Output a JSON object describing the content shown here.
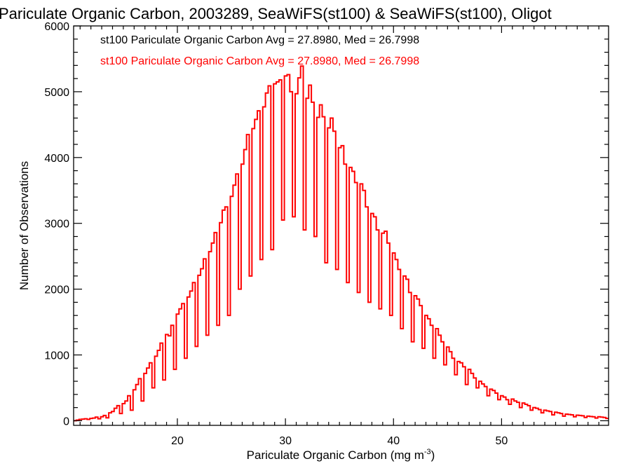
{
  "chart_data": {
    "type": "bar",
    "title": "Pariculate Organic Carbon, 2003289, SeaWiFS(st100) & SeaWiFS(st100), Oligot",
    "xlabel": "Pariculate Organic Carbon (mg m",
    "xlabel_superscript": "-3",
    "xlabel_suffix": ")",
    "ylabel": "Number of Observations",
    "xlim": [
      10.4,
      59.9
    ],
    "ylim": [
      -70,
      6000
    ],
    "xticks": [
      20,
      30,
      40,
      50
    ],
    "yticks": [
      0,
      1000,
      2000,
      3000,
      4000,
      5000,
      6000
    ],
    "grid": false,
    "legend_position": "top-left",
    "legend": [
      {
        "text": "st100 Pariculate Organic Carbon Avg = 27.8980, Med = 26.7998",
        "color": "#000000"
      },
      {
        "text": "st100 Pariculate Organic Carbon Avg = 27.8980, Med = 26.7998",
        "color": "#ff0000"
      }
    ],
    "series": [
      {
        "color": "#ff0000",
        "bin_width": 0.25,
        "x_start": 10.4,
        "values": [
          0,
          10,
          20,
          25,
          30,
          20,
          35,
          40,
          55,
          30,
          60,
          80,
          45,
          120,
          140,
          190,
          230,
          110,
          260,
          300,
          380,
          160,
          470,
          550,
          640,
          300,
          720,
          800,
          880,
          500,
          980,
          1070,
          1180,
          620,
          1310,
          1290,
          1450,
          780,
          1620,
          1700,
          1780,
          950,
          1880,
          1970,
          2100,
          1130,
          2210,
          2310,
          2460,
          1300,
          2570,
          2700,
          2860,
          1450,
          3010,
          3200,
          3250,
          1600,
          3410,
          3580,
          3750,
          2000,
          3900,
          4120,
          4350,
          2200,
          4440,
          4580,
          4710,
          2450,
          4770,
          4980,
          5090,
          2600,
          5120,
          5150,
          5180,
          3050,
          5240,
          5260,
          5000,
          3100,
          4970,
          5210,
          5390,
          2900,
          4900,
          5100,
          4840,
          2800,
          4610,
          4800,
          4620,
          2400,
          4450,
          4600,
          4400,
          2300,
          4150,
          4180,
          3900,
          2100,
          3850,
          3790,
          3620,
          1950,
          3600,
          3500,
          3250,
          1800,
          3150,
          3100,
          2900,
          1700,
          2850,
          2880,
          2700,
          1600,
          2550,
          2450,
          2300,
          1400,
          2200,
          2150,
          1950,
          1200,
          1900,
          1850,
          1750,
          1100,
          1600,
          1550,
          1450,
          950,
          1400,
          1300,
          1200,
          850,
          1120,
          1050,
          950,
          700,
          900,
          880,
          820,
          550,
          780,
          720,
          650,
          500,
          600,
          560,
          520,
          380,
          480,
          460,
          420,
          320,
          380,
          360,
          320,
          250,
          330,
          300,
          280,
          200,
          270,
          250,
          230,
          160,
          200,
          190,
          170,
          120,
          160,
          150,
          140,
          90,
          130,
          120,
          110,
          70,
          100,
          95,
          90,
          60,
          85,
          80,
          75,
          50,
          70,
          65,
          60,
          40,
          60,
          55,
          50,
          35,
          45,
          40,
          40,
          30,
          35,
          35,
          30,
          20,
          30,
          25,
          25
        ]
      }
    ]
  }
}
